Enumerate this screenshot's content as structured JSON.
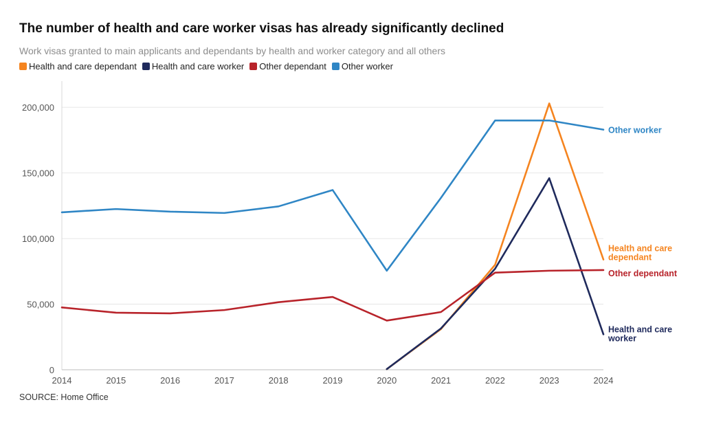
{
  "title": "The number of health and care worker visas has already significantly declined",
  "subtitle": "Work visas granted to main applicants and dependants by health and worker category and all others",
  "source": "SOURCE: Home Office",
  "chart_data": {
    "type": "line",
    "title": "The number of health and care worker visas has already significantly declined",
    "subtitle": "Work visas granted to main applicants and dependants by health and worker category and all others",
    "xlabel": "",
    "ylabel": "",
    "x": [
      2014,
      2015,
      2016,
      2017,
      2018,
      2019,
      2020,
      2021,
      2022,
      2023,
      2024
    ],
    "xticks": [
      "2014",
      "2015",
      "2016",
      "2017",
      "2018",
      "2019",
      "2020",
      "2021",
      "2022",
      "2023",
      "2024"
    ],
    "ylim": [
      0,
      220000
    ],
    "yticks": [
      0,
      50000,
      100000,
      150000,
      200000
    ],
    "ytick_labels": [
      "0",
      "50,000",
      "100,000",
      "150,000",
      "200,000"
    ],
    "legend_position": "top-left",
    "series": [
      {
        "name": "Health and care dependant",
        "color": "#f5841f",
        "end_label": [
          "Health and care",
          "dependant"
        ],
        "values": [
          null,
          null,
          null,
          null,
          null,
          null,
          500,
          31000,
          80000,
          203000,
          84000
        ]
      },
      {
        "name": "Health and care worker",
        "color": "#1f2a5c",
        "end_label": [
          "Health and care",
          "worker"
        ],
        "values": [
          null,
          null,
          null,
          null,
          null,
          null,
          500,
          31500,
          77000,
          146000,
          27000
        ]
      },
      {
        "name": "Other dependant",
        "color": "#b8232a",
        "end_label": [
          "Other dependant"
        ],
        "values": [
          47500,
          43500,
          43000,
          45500,
          51500,
          55500,
          37500,
          44000,
          74000,
          75500,
          76000
        ]
      },
      {
        "name": "Other worker",
        "color": "#2f86c5",
        "end_label": [
          "Other worker"
        ],
        "values": [
          120000,
          122500,
          120500,
          119500,
          124500,
          137000,
          75500,
          131000,
          190000,
          190000,
          183000
        ]
      }
    ]
  }
}
